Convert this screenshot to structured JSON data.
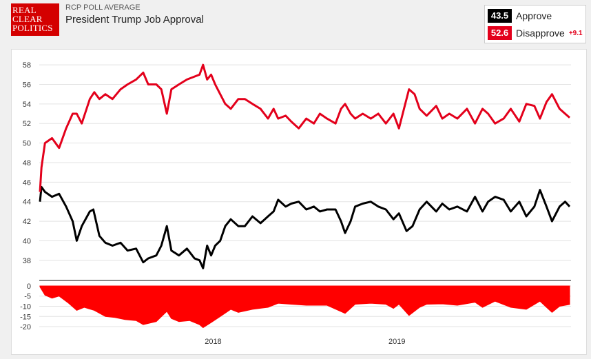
{
  "header": {
    "logo_lines": [
      "REAL",
      "CLEAR",
      "POLITICS"
    ],
    "supertitle": "RCP POLL AVERAGE",
    "title": "President Trump Job Approval"
  },
  "legend": {
    "approve": {
      "value": "43.5",
      "label": "Approve",
      "color": "#000000"
    },
    "disapprove": {
      "value": "52.6",
      "label": "Disapprove",
      "color": "#e3001b",
      "spread": "+9.1"
    }
  },
  "chart_data": [
    {
      "type": "line",
      "x_labels": [
        "2018",
        "2019"
      ],
      "ylim": [
        37,
        58.5
      ],
      "yticks": [
        38,
        40,
        42,
        44,
        46,
        48,
        50,
        52,
        54,
        56,
        58
      ],
      "grid": true,
      "series": [
        {
          "name": "Approve",
          "color": "#000000",
          "points": [
            [
              "2017-01-22",
              44.0
            ],
            [
              "2017-01-25",
              45.5
            ],
            [
              "2017-02-01",
              45.0
            ],
            [
              "2017-02-15",
              44.5
            ],
            [
              "2017-03-01",
              44.8
            ],
            [
              "2017-03-15",
              43.5
            ],
            [
              "2017-03-28",
              42.0
            ],
            [
              "2017-04-05",
              40.0
            ],
            [
              "2017-04-15",
              41.5
            ],
            [
              "2017-05-01",
              43.0
            ],
            [
              "2017-05-08",
              43.2
            ],
            [
              "2017-05-20",
              40.5
            ],
            [
              "2017-06-01",
              39.8
            ],
            [
              "2017-06-15",
              39.5
            ],
            [
              "2017-07-01",
              39.8
            ],
            [
              "2017-07-15",
              39.0
            ],
            [
              "2017-08-01",
              39.2
            ],
            [
              "2017-08-15",
              37.8
            ],
            [
              "2017-08-25",
              38.2
            ],
            [
              "2017-09-10",
              38.5
            ],
            [
              "2017-09-20",
              39.5
            ],
            [
              "2017-10-01",
              41.5
            ],
            [
              "2017-10-10",
              39.0
            ],
            [
              "2017-10-25",
              38.5
            ],
            [
              "2017-11-10",
              39.2
            ],
            [
              "2017-11-25",
              38.2
            ],
            [
              "2017-12-05",
              38.0
            ],
            [
              "2017-12-12",
              37.2
            ],
            [
              "2017-12-20",
              39.5
            ],
            [
              "2017-12-28",
              38.5
            ],
            [
              "2018-01-05",
              39.5
            ],
            [
              "2018-01-15",
              40.0
            ],
            [
              "2018-01-25",
              41.5
            ],
            [
              "2018-02-05",
              42.2
            ],
            [
              "2018-02-20",
              41.5
            ],
            [
              "2018-03-05",
              41.5
            ],
            [
              "2018-03-20",
              42.5
            ],
            [
              "2018-04-05",
              41.8
            ],
            [
              "2018-04-20",
              42.5
            ],
            [
              "2018-05-01",
              43.0
            ],
            [
              "2018-05-10",
              44.2
            ],
            [
              "2018-05-25",
              43.5
            ],
            [
              "2018-06-05",
              43.8
            ],
            [
              "2018-06-20",
              44.0
            ],
            [
              "2018-07-05",
              43.2
            ],
            [
              "2018-07-20",
              43.5
            ],
            [
              "2018-08-01",
              43.0
            ],
            [
              "2018-08-15",
              43.2
            ],
            [
              "2018-09-01",
              43.2
            ],
            [
              "2018-09-12",
              42.0
            ],
            [
              "2018-09-20",
              40.8
            ],
            [
              "2018-10-01",
              42.0
            ],
            [
              "2018-10-10",
              43.5
            ],
            [
              "2018-10-25",
              43.8
            ],
            [
              "2018-11-10",
              44.0
            ],
            [
              "2018-11-25",
              43.5
            ],
            [
              "2018-12-10",
              43.2
            ],
            [
              "2018-12-25",
              42.2
            ],
            [
              "2019-01-05",
              42.8
            ],
            [
              "2019-01-20",
              41.0
            ],
            [
              "2019-02-01",
              41.5
            ],
            [
              "2019-02-15",
              43.2
            ],
            [
              "2019-03-01",
              44.0
            ],
            [
              "2019-03-20",
              43.0
            ],
            [
              "2019-04-01",
              43.8
            ],
            [
              "2019-04-15",
              43.2
            ],
            [
              "2019-05-01",
              43.5
            ],
            [
              "2019-05-20",
              43.0
            ],
            [
              "2019-06-05",
              44.5
            ],
            [
              "2019-06-20",
              43.0
            ],
            [
              "2019-07-01",
              44.0
            ],
            [
              "2019-07-15",
              44.5
            ],
            [
              "2019-08-01",
              44.2
            ],
            [
              "2019-08-15",
              43.0
            ],
            [
              "2019-09-01",
              44.0
            ],
            [
              "2019-09-15",
              42.5
            ],
            [
              "2019-10-01",
              43.5
            ],
            [
              "2019-10-12",
              45.2
            ],
            [
              "2019-10-25",
              43.5
            ],
            [
              "2019-11-05",
              42.0
            ],
            [
              "2019-11-20",
              43.5
            ],
            [
              "2019-12-01",
              44.0
            ],
            [
              "2019-12-10",
              43.5
            ]
          ]
        },
        {
          "name": "Disapprove",
          "color": "#e3001b",
          "points": [
            [
              "2017-01-22",
              45.0
            ],
            [
              "2017-01-25",
              47.5
            ],
            [
              "2017-02-01",
              50.0
            ],
            [
              "2017-02-15",
              50.5
            ],
            [
              "2017-03-01",
              49.5
            ],
            [
              "2017-03-15",
              51.5
            ],
            [
              "2017-03-28",
              53.0
            ],
            [
              "2017-04-05",
              53.0
            ],
            [
              "2017-04-15",
              52.0
            ],
            [
              "2017-05-01",
              54.5
            ],
            [
              "2017-05-10",
              55.2
            ],
            [
              "2017-05-20",
              54.5
            ],
            [
              "2017-06-01",
              55.0
            ],
            [
              "2017-06-15",
              54.5
            ],
            [
              "2017-07-01",
              55.5
            ],
            [
              "2017-07-15",
              56.0
            ],
            [
              "2017-08-01",
              56.5
            ],
            [
              "2017-08-15",
              57.2
            ],
            [
              "2017-08-25",
              56.0
            ],
            [
              "2017-09-10",
              56.0
            ],
            [
              "2017-09-20",
              55.5
            ],
            [
              "2017-10-01",
              53.0
            ],
            [
              "2017-10-10",
              55.5
            ],
            [
              "2017-10-25",
              56.0
            ],
            [
              "2017-11-10",
              56.5
            ],
            [
              "2017-11-25",
              56.8
            ],
            [
              "2017-12-05",
              57.0
            ],
            [
              "2017-12-12",
              58.0
            ],
            [
              "2017-12-20",
              56.5
            ],
            [
              "2017-12-28",
              57.0
            ],
            [
              "2018-01-05",
              56.0
            ],
            [
              "2018-01-15",
              55.0
            ],
            [
              "2018-01-25",
              54.0
            ],
            [
              "2018-02-05",
              53.5
            ],
            [
              "2018-02-20",
              54.5
            ],
            [
              "2018-03-05",
              54.5
            ],
            [
              "2018-03-20",
              54.0
            ],
            [
              "2018-04-05",
              53.5
            ],
            [
              "2018-04-20",
              52.5
            ],
            [
              "2018-05-01",
              53.5
            ],
            [
              "2018-05-10",
              52.5
            ],
            [
              "2018-05-25",
              52.8
            ],
            [
              "2018-06-05",
              52.2
            ],
            [
              "2018-06-20",
              51.5
            ],
            [
              "2018-07-05",
              52.5
            ],
            [
              "2018-07-20",
              52.0
            ],
            [
              "2018-08-01",
              53.0
            ],
            [
              "2018-08-15",
              52.5
            ],
            [
              "2018-09-01",
              52.0
            ],
            [
              "2018-09-12",
              53.5
            ],
            [
              "2018-09-20",
              54.0
            ],
            [
              "2018-10-01",
              53.0
            ],
            [
              "2018-10-10",
              52.5
            ],
            [
              "2018-10-25",
              53.0
            ],
            [
              "2018-11-10",
              52.5
            ],
            [
              "2018-11-25",
              53.0
            ],
            [
              "2018-12-10",
              52.0
            ],
            [
              "2018-12-25",
              53.0
            ],
            [
              "2019-01-05",
              51.5
            ],
            [
              "2019-01-15",
              53.5
            ],
            [
              "2019-01-25",
              55.5
            ],
            [
              "2019-02-05",
              55.0
            ],
            [
              "2019-02-15",
              53.5
            ],
            [
              "2019-03-01",
              52.8
            ],
            [
              "2019-03-20",
              53.8
            ],
            [
              "2019-04-01",
              52.5
            ],
            [
              "2019-04-15",
              53.0
            ],
            [
              "2019-05-01",
              52.5
            ],
            [
              "2019-05-20",
              53.5
            ],
            [
              "2019-06-05",
              52.0
            ],
            [
              "2019-06-20",
              53.5
            ],
            [
              "2019-07-01",
              53.0
            ],
            [
              "2019-07-15",
              52.0
            ],
            [
              "2019-08-01",
              52.5
            ],
            [
              "2019-08-15",
              53.5
            ],
            [
              "2019-09-01",
              52.2
            ],
            [
              "2019-09-15",
              54.0
            ],
            [
              "2019-10-01",
              53.8
            ],
            [
              "2019-10-12",
              52.5
            ],
            [
              "2019-10-25",
              54.2
            ],
            [
              "2019-11-05",
              55.0
            ],
            [
              "2019-11-20",
              53.5
            ],
            [
              "2019-12-01",
              53.0
            ],
            [
              "2019-12-10",
              52.6
            ]
          ]
        }
      ]
    },
    {
      "type": "area",
      "ylim": [
        -21,
        1
      ],
      "yticks": [
        0,
        -5,
        -10,
        -15,
        -20
      ],
      "color": "#ff0000",
      "points": [
        [
          "2017-01-22",
          -0.5
        ],
        [
          "2017-02-01",
          -4.5
        ],
        [
          "2017-02-15",
          -6.0
        ],
        [
          "2017-03-01",
          -5.0
        ],
        [
          "2017-03-20",
          -8.5
        ],
        [
          "2017-04-05",
          -12.0
        ],
        [
          "2017-04-20",
          -10.5
        ],
        [
          "2017-05-10",
          -12.0
        ],
        [
          "2017-06-01",
          -15.0
        ],
        [
          "2017-06-20",
          -15.5
        ],
        [
          "2017-07-10",
          -16.5
        ],
        [
          "2017-08-01",
          -17.0
        ],
        [
          "2017-08-15",
          -19.0
        ],
        [
          "2017-09-10",
          -17.5
        ],
        [
          "2017-10-01",
          -12.5
        ],
        [
          "2017-10-10",
          -16.0
        ],
        [
          "2017-10-25",
          -17.5
        ],
        [
          "2017-11-15",
          -17.0
        ],
        [
          "2017-12-05",
          -19.0
        ],
        [
          "2017-12-12",
          -20.5
        ],
        [
          "2017-12-28",
          -18.0
        ],
        [
          "2018-01-15",
          -15.0
        ],
        [
          "2018-02-05",
          -11.5
        ],
        [
          "2018-02-20",
          -13.0
        ],
        [
          "2018-03-20",
          -11.5
        ],
        [
          "2018-04-20",
          -10.5
        ],
        [
          "2018-05-10",
          -8.5
        ],
        [
          "2018-06-05",
          -9.0
        ],
        [
          "2018-07-05",
          -9.5
        ],
        [
          "2018-08-15",
          -9.5
        ],
        [
          "2018-09-20",
          -13.5
        ],
        [
          "2018-10-10",
          -9.0
        ],
        [
          "2018-11-10",
          -8.5
        ],
        [
          "2018-12-10",
          -9.0
        ],
        [
          "2018-12-25",
          -11.0
        ],
        [
          "2019-01-05",
          -9.0
        ],
        [
          "2019-01-25",
          -14.5
        ],
        [
          "2019-02-15",
          -10.5
        ],
        [
          "2019-03-01",
          -9.0
        ],
        [
          "2019-04-01",
          -8.8
        ],
        [
          "2019-05-01",
          -9.5
        ],
        [
          "2019-06-05",
          -8.0
        ],
        [
          "2019-06-20",
          -10.5
        ],
        [
          "2019-07-15",
          -7.5
        ],
        [
          "2019-08-15",
          -10.5
        ],
        [
          "2019-09-15",
          -11.5
        ],
        [
          "2019-10-12",
          -7.5
        ],
        [
          "2019-10-25",
          -10.5
        ],
        [
          "2019-11-05",
          -13.0
        ],
        [
          "2019-11-20",
          -10.0
        ],
        [
          "2019-12-10",
          -9.1
        ]
      ]
    }
  ]
}
